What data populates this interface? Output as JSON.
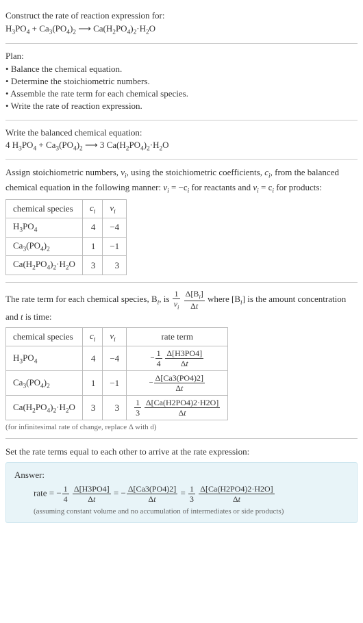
{
  "header": {
    "prompt": "Construct the rate of reaction expression for:"
  },
  "unbalanced": {
    "r1": "H",
    "r1s1": "3",
    "r1b": "PO",
    "r1s2": "4",
    "plus": " + ",
    "r2": "Ca",
    "r2s1": "3",
    "r2b": "(PO",
    "r2s2": "4",
    "r2c": ")",
    "r2s3": "2",
    "arrow": "  ⟶  ",
    "p1": "Ca(H",
    "p1s1": "2",
    "p1b": "PO",
    "p1s2": "4",
    "p1c": ")",
    "p1s3": "2",
    "p1d": "·H",
    "p1s4": "2",
    "p1e": "O"
  },
  "plan": {
    "title": "Plan:",
    "items": [
      "Balance the chemical equation.",
      "Determine the stoichiometric numbers.",
      "Assemble the rate term for each chemical species.",
      "Write the rate of reaction expression."
    ]
  },
  "balanced": {
    "title": "Write the balanced chemical equation:",
    "c1": "4 ",
    "c2": " + ",
    "c3": "  ⟶  ",
    "c4": "3 "
  },
  "stoichText": {
    "p1": "Assign stoichiometric numbers, ",
    "nu_i": "ν",
    "nu_i_sub": "i",
    "p2": ", using the stoichiometric coefficients, ",
    "c_i": "c",
    "c_i_sub": "i",
    "p3": ", from the balanced chemical equation in the following manner: ",
    "eq1a": "ν",
    "eq1b": " = −c",
    "p4": " for reactants and ",
    "eq2a": "ν",
    "eq2b": " = c",
    "p5": " for products:"
  },
  "tableHeaders": {
    "species": "chemical species",
    "ci": "c",
    "ci_sub": "i",
    "nui": "ν",
    "nui_sub": "i",
    "rateterm": "rate term"
  },
  "rows": [
    {
      "c": "4",
      "nu": "−4"
    },
    {
      "c": "1",
      "nu": "−1"
    },
    {
      "c": "3",
      "nu": "3"
    }
  ],
  "rateText": {
    "p1": "The rate term for each chemical species, B",
    "sub_i": "i",
    "p2": ", is ",
    "p3": " where [B",
    "p4": "] is the amount concentration and ",
    "t": "t",
    "p5": " is time:"
  },
  "rateFrac": {
    "lead_num": "1",
    "lead_den_a": "ν",
    "lead_den_sub": "i",
    "main_num_a": "Δ[B",
    "main_num_sub": "i",
    "main_num_b": "]",
    "main_den": "Δt"
  },
  "rateTerms": {
    "r1_lead": "−",
    "r1_num1": "1",
    "r1_den1": "4",
    "r1_num2": "Δ[H3PO4]",
    "r1_den2": "Δt",
    "r2_lead": "−",
    "r2_num2": "Δ[Ca3(PO4)2]",
    "r2_den2": "Δt",
    "r3_num1": "1",
    "r3_den1": "3",
    "r3_num2": "Δ[Ca(H2PO4)2·H2O]",
    "r3_den2": "Δt"
  },
  "infinitesimal": "(for infinitesimal rate of change, replace Δ with d)",
  "finalText": "Set the rate terms equal to each other to arrive at the rate expression:",
  "answer": {
    "label": "Answer:",
    "rate": "rate = ",
    "eq": " = ",
    "note": "(assuming constant volume and no accumulation of intermediates or side products)"
  },
  "colors": {
    "text": "#333",
    "border": "#bbb",
    "hr": "#ccc",
    "answer_bg": "#e8f4f8",
    "answer_border": "#cce5ee",
    "note": "#666"
  }
}
